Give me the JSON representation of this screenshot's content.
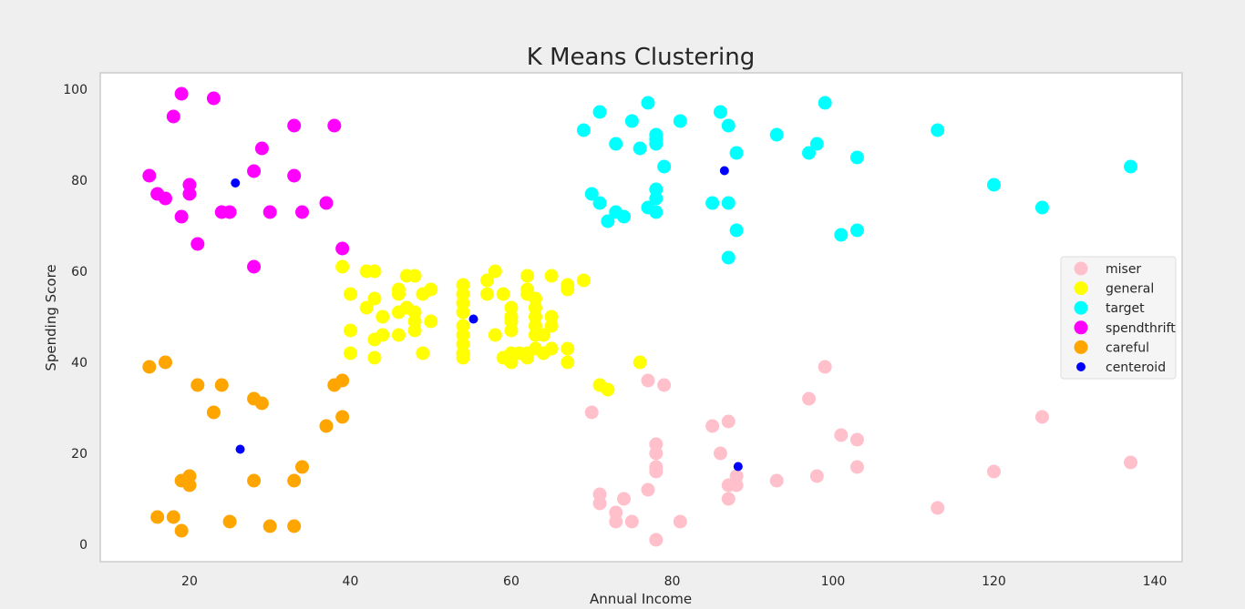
{
  "chart_data": {
    "type": "scatter",
    "title": "K Means Clustering",
    "xlabel": "Annual Income",
    "ylabel": "Spending Score",
    "xlim": [
      8.9,
      143.4
    ],
    "ylim": [
      -3.8,
      103.6
    ],
    "xticks": [
      20,
      40,
      60,
      80,
      100,
      120,
      140
    ],
    "yticks": [
      0,
      20,
      40,
      60,
      80,
      100
    ],
    "grid": false,
    "legend_position": "center-right",
    "series": [
      {
        "name": "miser",
        "color": "#ffc0cb",
        "marker": "large",
        "points": [
          [
            70,
            29
          ],
          [
            71,
            11
          ],
          [
            71,
            9
          ],
          [
            73,
            7
          ],
          [
            73,
            5
          ],
          [
            74,
            10
          ],
          [
            75,
            5
          ],
          [
            77,
            36
          ],
          [
            77,
            12
          ],
          [
            78,
            22
          ],
          [
            78,
            20
          ],
          [
            78,
            17
          ],
          [
            78,
            16
          ],
          [
            78,
            1
          ],
          [
            79,
            35
          ],
          [
            81,
            5
          ],
          [
            85,
            26
          ],
          [
            86,
            20
          ],
          [
            87,
            27
          ],
          [
            87,
            13
          ],
          [
            87,
            10
          ],
          [
            88,
            15
          ],
          [
            88,
            13
          ],
          [
            93,
            14
          ],
          [
            97,
            32
          ],
          [
            98,
            15
          ],
          [
            99,
            39
          ],
          [
            101,
            24
          ],
          [
            103,
            23
          ],
          [
            103,
            17
          ],
          [
            113,
            8
          ],
          [
            120,
            16
          ],
          [
            126,
            28
          ],
          [
            137,
            18
          ]
        ]
      },
      {
        "name": "general",
        "color": "#ffff00",
        "marker": "large",
        "points": [
          [
            39,
            61
          ],
          [
            40,
            55
          ],
          [
            40,
            47
          ],
          [
            40,
            42
          ],
          [
            42,
            60
          ],
          [
            43,
            60
          ],
          [
            42,
            52
          ],
          [
            43,
            54
          ],
          [
            44,
            50
          ],
          [
            43,
            45
          ],
          [
            44,
            46
          ],
          [
            43,
            41
          ],
          [
            46,
            56
          ],
          [
            46,
            55
          ],
          [
            46,
            51
          ],
          [
            46,
            46
          ],
          [
            47,
            59
          ],
          [
            48,
            59
          ],
          [
            47,
            52
          ],
          [
            48,
            51
          ],
          [
            48,
            49
          ],
          [
            48,
            47
          ],
          [
            49,
            55
          ],
          [
            49,
            42
          ],
          [
            50,
            56
          ],
          [
            50,
            49
          ],
          [
            54,
            57
          ],
          [
            54,
            55
          ],
          [
            54,
            53
          ],
          [
            54,
            51
          ],
          [
            54,
            48
          ],
          [
            54,
            46
          ],
          [
            54,
            44
          ],
          [
            54,
            42
          ],
          [
            54,
            41
          ],
          [
            57,
            58
          ],
          [
            57,
            55
          ],
          [
            58,
            60
          ],
          [
            58,
            46
          ],
          [
            59,
            55
          ],
          [
            59,
            41
          ],
          [
            60,
            52
          ],
          [
            60,
            50
          ],
          [
            60,
            49
          ],
          [
            60,
            47
          ],
          [
            60,
            42
          ],
          [
            60,
            40
          ],
          [
            61,
            42
          ],
          [
            62,
            59
          ],
          [
            62,
            56
          ],
          [
            62,
            55
          ],
          [
            62,
            42
          ],
          [
            62,
            41
          ],
          [
            63,
            54
          ],
          [
            63,
            52
          ],
          [
            63,
            50
          ],
          [
            63,
            48
          ],
          [
            63,
            46
          ],
          [
            63,
            43
          ],
          [
            64,
            46
          ],
          [
            64,
            42
          ],
          [
            65,
            59
          ],
          [
            65,
            50
          ],
          [
            65,
            48
          ],
          [
            65,
            43
          ],
          [
            67,
            57
          ],
          [
            67,
            56
          ],
          [
            67,
            43
          ],
          [
            67,
            40
          ],
          [
            69,
            58
          ],
          [
            76,
            40
          ],
          [
            71,
            35
          ],
          [
            72,
            34
          ]
        ]
      },
      {
        "name": "target",
        "color": "#00ffff",
        "marker": "large",
        "points": [
          [
            69,
            91
          ],
          [
            71,
            95
          ],
          [
            70,
            77
          ],
          [
            71,
            75
          ],
          [
            73,
            88
          ],
          [
            72,
            71
          ],
          [
            73,
            73
          ],
          [
            74,
            72
          ],
          [
            75,
            93
          ],
          [
            76,
            87
          ],
          [
            77,
            97
          ],
          [
            77,
            74
          ],
          [
            78,
            90
          ],
          [
            78,
            89
          ],
          [
            78,
            88
          ],
          [
            78,
            78
          ],
          [
            78,
            76
          ],
          [
            78,
            73
          ],
          [
            79,
            83
          ],
          [
            81,
            93
          ],
          [
            85,
            75
          ],
          [
            86,
            95
          ],
          [
            87,
            92
          ],
          [
            87,
            75
          ],
          [
            87,
            63
          ],
          [
            88,
            86
          ],
          [
            88,
            69
          ],
          [
            93,
            90
          ],
          [
            97,
            86
          ],
          [
            98,
            88
          ],
          [
            99,
            97
          ],
          [
            101,
            68
          ],
          [
            103,
            85
          ],
          [
            103,
            69
          ],
          [
            113,
            91
          ],
          [
            120,
            79
          ],
          [
            126,
            74
          ],
          [
            137,
            83
          ]
        ]
      },
      {
        "name": "spendthrift",
        "color": "#ff00ff",
        "marker": "large",
        "points": [
          [
            15,
            81
          ],
          [
            16,
            77
          ],
          [
            17,
            76
          ],
          [
            18,
            94
          ],
          [
            19,
            99
          ],
          [
            19,
            72
          ],
          [
            20,
            79
          ],
          [
            20,
            77
          ],
          [
            21,
            66
          ],
          [
            23,
            98
          ],
          [
            24,
            73
          ],
          [
            25,
            73
          ],
          [
            28,
            82
          ],
          [
            28,
            61
          ],
          [
            29,
            87
          ],
          [
            30,
            73
          ],
          [
            33,
            92
          ],
          [
            33,
            81
          ],
          [
            34,
            73
          ],
          [
            37,
            75
          ],
          [
            38,
            92
          ],
          [
            39,
            65
          ]
        ]
      },
      {
        "name": "careful",
        "color": "#ffa500",
        "marker": "large",
        "points": [
          [
            15,
            39
          ],
          [
            17,
            40
          ],
          [
            21,
            35
          ],
          [
            24,
            35
          ],
          [
            23,
            29
          ],
          [
            28,
            32
          ],
          [
            29,
            31
          ],
          [
            19,
            14
          ],
          [
            20,
            15
          ],
          [
            20,
            13
          ],
          [
            16,
            6
          ],
          [
            18,
            6
          ],
          [
            19,
            3
          ],
          [
            25,
            5
          ],
          [
            28,
            14
          ],
          [
            30,
            4
          ],
          [
            33,
            14
          ],
          [
            33,
            4
          ],
          [
            34,
            17
          ],
          [
            37,
            26
          ],
          [
            38,
            35
          ],
          [
            39,
            36
          ],
          [
            39,
            28
          ]
        ]
      },
      {
        "name": "centeroid",
        "color": "#0000ff",
        "marker": "small",
        "points": [
          [
            25.7,
            79.4
          ],
          [
            55.3,
            49.5
          ],
          [
            86.5,
            82.1
          ],
          [
            88.2,
            17.1
          ],
          [
            26.3,
            20.9
          ]
        ]
      }
    ]
  }
}
